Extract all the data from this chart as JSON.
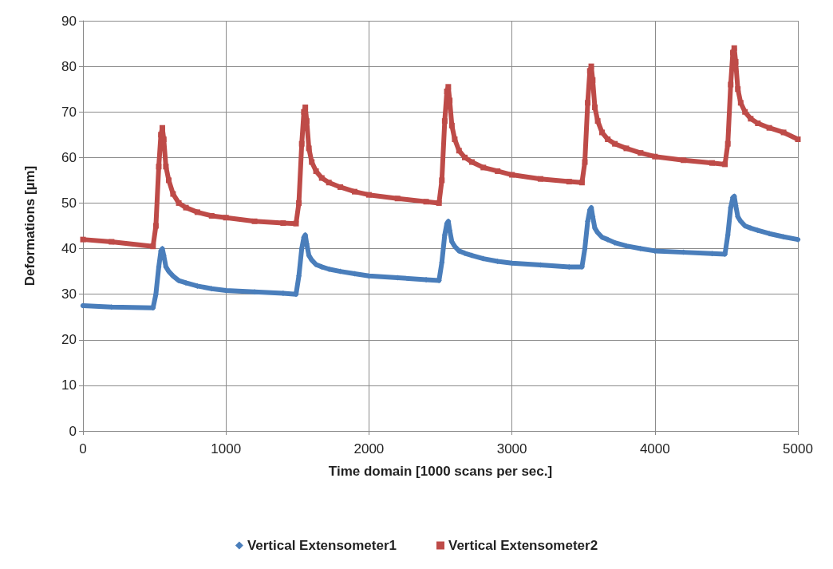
{
  "chart_data": {
    "type": "line",
    "xlabel": "Time domain [1000 scans per sec.]",
    "ylabel": "Deformations [µm]",
    "xlim": [
      0,
      5000
    ],
    "xticks": [
      0,
      1000,
      2000,
      3000,
      4000,
      5000
    ],
    "ylim": [
      0,
      90
    ],
    "yticks": [
      0,
      10,
      20,
      30,
      40,
      50,
      60,
      70,
      80,
      90
    ],
    "grid": true,
    "legend": "bottom",
    "series": [
      {
        "name": "Vertical Extensometer1",
        "color": "#4a7ebb",
        "marker": "diamond",
        "x": [
          0,
          200,
          490,
          510,
          530,
          545,
          555,
          565,
          580,
          600,
          630,
          670,
          720,
          800,
          900,
          1000,
          1200,
          1400,
          1490,
          1510,
          1530,
          1545,
          1555,
          1565,
          1580,
          1600,
          1630,
          1670,
          1720,
          1800,
          1900,
          2000,
          2200,
          2400,
          2490,
          2510,
          2530,
          2545,
          2555,
          2565,
          2580,
          2600,
          2630,
          2670,
          2720,
          2800,
          2900,
          3000,
          3200,
          3400,
          3490,
          3510,
          3530,
          3545,
          3555,
          3565,
          3580,
          3600,
          3630,
          3670,
          3720,
          3800,
          3900,
          4000,
          4200,
          4400,
          4490,
          4510,
          4530,
          4545,
          4555,
          4565,
          4580,
          4600,
          4630,
          4670,
          4720,
          4800,
          4900,
          5000
        ],
        "values": [
          27.5,
          27.2,
          27,
          30,
          36,
          39.5,
          40,
          38.5,
          36,
          35,
          34,
          33,
          32.5,
          31.8,
          31.2,
          30.8,
          30.5,
          30.2,
          30,
          34,
          40,
          42.5,
          43,
          41,
          38.5,
          37.5,
          36.5,
          36,
          35.5,
          35,
          34.5,
          34,
          33.6,
          33.2,
          33,
          37,
          43,
          45.5,
          46,
          44,
          41.5,
          40.5,
          39.5,
          39,
          38.5,
          37.8,
          37.2,
          36.8,
          36.4,
          36,
          36,
          40,
          46,
          48.5,
          49,
          47,
          44.5,
          43.5,
          42.5,
          42,
          41.3,
          40.6,
          40,
          39.5,
          39.2,
          38.9,
          38.8,
          43,
          49,
          51.2,
          51.5,
          49.5,
          47,
          46,
          45,
          44.5,
          44,
          43.3,
          42.6,
          42
        ]
      },
      {
        "name": "Vertical Extensometer2",
        "color": "#be4b48",
        "marker": "square",
        "x": [
          0,
          200,
          490,
          510,
          530,
          545,
          555,
          565,
          580,
          600,
          630,
          670,
          720,
          800,
          900,
          1000,
          1200,
          1400,
          1490,
          1510,
          1530,
          1545,
          1555,
          1565,
          1580,
          1600,
          1630,
          1670,
          1720,
          1800,
          1900,
          2000,
          2200,
          2400,
          2490,
          2510,
          2530,
          2545,
          2555,
          2565,
          2580,
          2600,
          2630,
          2670,
          2720,
          2800,
          2900,
          3000,
          3200,
          3400,
          3490,
          3510,
          3530,
          3545,
          3555,
          3565,
          3580,
          3600,
          3630,
          3670,
          3720,
          3800,
          3900,
          4000,
          4200,
          4400,
          4490,
          4510,
          4530,
          4545,
          4555,
          4565,
          4580,
          4600,
          4630,
          4670,
          4720,
          4800,
          4900,
          5000
        ],
        "values": [
          42,
          41.5,
          40.5,
          45,
          58,
          65,
          66.5,
          64,
          58,
          55,
          52,
          50,
          49,
          48,
          47.2,
          46.8,
          46,
          45.6,
          45.5,
          50,
          63,
          70,
          71,
          68,
          62,
          59,
          57,
          55.5,
          54.5,
          53.5,
          52.5,
          51.8,
          51,
          50.3,
          50,
          55,
          68,
          74.5,
          75.5,
          72.5,
          67,
          64,
          61.5,
          60,
          59,
          57.8,
          57,
          56.2,
          55.3,
          54.7,
          54.5,
          59,
          72,
          79,
          80,
          77,
          71,
          68,
          65.5,
          64,
          63,
          62,
          61,
          60.2,
          59.4,
          58.8,
          58.5,
          63,
          76,
          83,
          84,
          81,
          75,
          72,
          70,
          68.5,
          67.5,
          66.5,
          65.5,
          64
        ]
      }
    ]
  }
}
